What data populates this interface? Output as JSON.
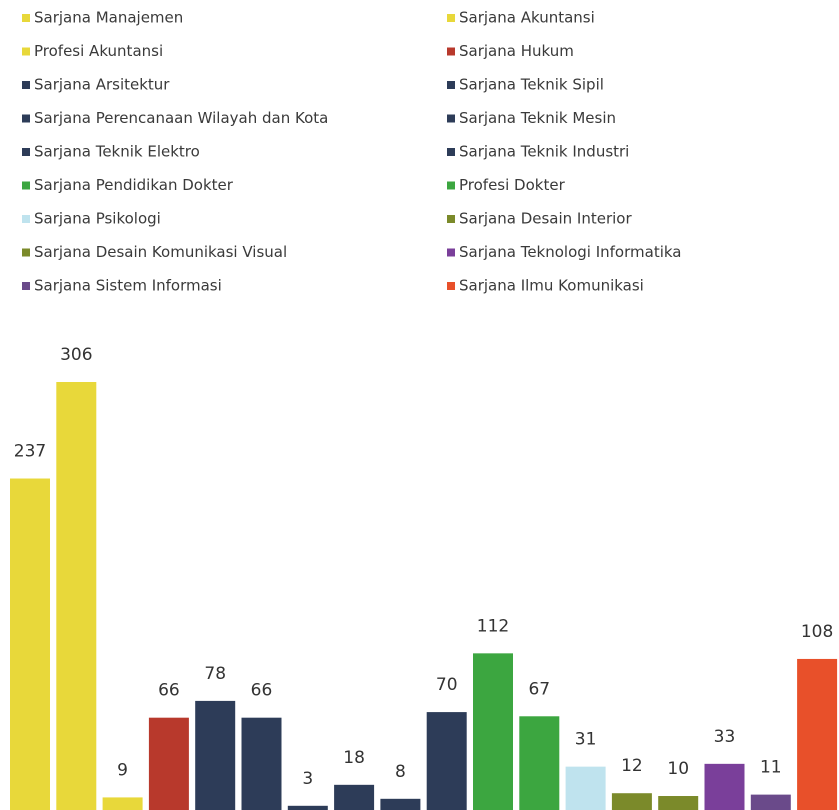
{
  "chart_data": {
    "type": "bar",
    "categories": [
      "Sarjana Manajemen",
      "Sarjana Akuntansi",
      "Profesi Akuntansi",
      "Sarjana  Hukum",
      "Sarjana Arsitektur",
      "Sarjana Teknik Sipil",
      "Sarjana Perencanaan Wilayah dan Kota",
      "Sarjana Teknik Mesin",
      "Sarjana Teknik Elektro",
      "Sarjana Teknik Industri",
      "Sarjana Pendidikan Dokter",
      "Profesi Dokter",
      "Sarjana Psikologi",
      "Sarjana Desain Interior",
      "Sarjana Desain Komunikasi Visual",
      "Sarjana Teknologi Informatika",
      "Sarjana Sistem Informasi",
      "Sarjana Ilmu Komunikasi"
    ],
    "values": [
      237,
      306,
      9,
      66,
      78,
      66,
      3,
      18,
      8,
      70,
      112,
      67,
      31,
      12,
      10,
      33,
      11,
      108
    ],
    "colors": [
      "#e8d83a",
      "#e8d83a",
      "#e8d83a",
      "#b8392c",
      "#2d3c58",
      "#2d3c58",
      "#2d3c58",
      "#2d3c58",
      "#2d3c58",
      "#2d3c58",
      "#3ca640",
      "#3ca640",
      "#bfe3ee",
      "#7b8a2a",
      "#7b8a2a",
      "#7a3f9a",
      "#6a4a8a",
      "#e8502a"
    ]
  }
}
